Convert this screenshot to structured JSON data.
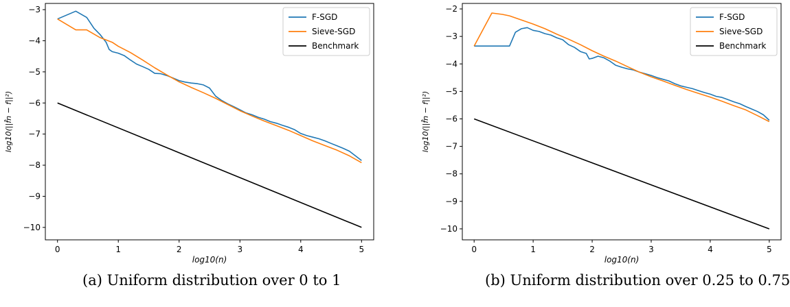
{
  "chart_data": [
    {
      "type": "line",
      "caption": "(a)  Uniform distribution over 0 to 1",
      "xlabel": "log10(n)",
      "ylabel": "log10(||f̂n − f||²)",
      "xlim": [
        -0.2,
        5.2
      ],
      "ylim": [
        -10.4,
        -2.8
      ],
      "xticks": [
        0,
        1,
        2,
        3,
        4,
        5
      ],
      "xtick_labels": [
        "0",
        "1",
        "2",
        "3",
        "4",
        "5"
      ],
      "yticks": [
        -3,
        -4,
        -5,
        -6,
        -7,
        -8,
        -9,
        -10
      ],
      "ytick_labels": [
        "−3",
        "−4",
        "−5",
        "−6",
        "−7",
        "−8",
        "−9",
        "−10"
      ],
      "legend_position": "top-right",
      "grid": false,
      "series": [
        {
          "name": "F-SGD",
          "color": "#1f77b4",
          "x": [
            0,
            0.3,
            0.48,
            0.6,
            0.7,
            0.8,
            0.85,
            0.9,
            1.0,
            1.1,
            1.2,
            1.3,
            1.4,
            1.5,
            1.6,
            1.7,
            1.8,
            1.9,
            2.0,
            2.1,
            2.2,
            2.3,
            2.4,
            2.5,
            2.6,
            2.7,
            2.8,
            2.9,
            3.0,
            3.1,
            3.2,
            3.3,
            3.4,
            3.5,
            3.6,
            3.7,
            3.8,
            3.9,
            4.0,
            4.1,
            4.2,
            4.3,
            4.4,
            4.5,
            4.6,
            4.7,
            4.8,
            4.9,
            5.0
          ],
          "y": [
            -3.3,
            -3.05,
            -3.25,
            -3.6,
            -3.8,
            -4.05,
            -4.28,
            -4.35,
            -4.4,
            -4.48,
            -4.62,
            -4.75,
            -4.83,
            -4.92,
            -5.05,
            -5.06,
            -5.12,
            -5.2,
            -5.28,
            -5.33,
            -5.36,
            -5.38,
            -5.42,
            -5.52,
            -5.78,
            -5.92,
            -6.03,
            -6.12,
            -6.22,
            -6.32,
            -6.38,
            -6.46,
            -6.52,
            -6.6,
            -6.65,
            -6.72,
            -6.78,
            -6.86,
            -6.98,
            -7.05,
            -7.1,
            -7.15,
            -7.22,
            -7.3,
            -7.38,
            -7.46,
            -7.55,
            -7.7,
            -7.85
          ]
        },
        {
          "name": "Sieve-SGD",
          "color": "#ff7f0e",
          "x": [
            0,
            0.3,
            0.48,
            0.7,
            0.9,
            1.0,
            1.2,
            1.4,
            1.6,
            1.8,
            2.0,
            2.2,
            2.4,
            2.6,
            2.8,
            3.0,
            3.2,
            3.4,
            3.6,
            3.8,
            4.0,
            4.2,
            4.4,
            4.6,
            4.8,
            5.0
          ],
          "y": [
            -3.3,
            -3.65,
            -3.65,
            -3.9,
            -4.05,
            -4.18,
            -4.38,
            -4.62,
            -4.87,
            -5.1,
            -5.32,
            -5.5,
            -5.67,
            -5.85,
            -6.05,
            -6.25,
            -6.42,
            -6.58,
            -6.73,
            -6.88,
            -7.05,
            -7.22,
            -7.37,
            -7.52,
            -7.7,
            -7.92
          ]
        },
        {
          "name": "Benchmark",
          "color": "#000000",
          "x": [
            0,
            5
          ],
          "y": [
            -6,
            -10
          ]
        }
      ]
    },
    {
      "type": "line",
      "caption": "(b)  Uniform distribution over 0.25 to 0.75",
      "xlabel": "log10(n)",
      "ylabel": "log10(||f̂n − f||²)",
      "xlim": [
        -0.2,
        5.2
      ],
      "ylim": [
        -10.4,
        -1.8
      ],
      "xticks": [
        0,
        1,
        2,
        3,
        4,
        5
      ],
      "xtick_labels": [
        "0",
        "1",
        "2",
        "3",
        "4",
        "5"
      ],
      "yticks": [
        -2,
        -3,
        -4,
        -5,
        -6,
        -7,
        -8,
        -9,
        -10
      ],
      "ytick_labels": [
        "−2",
        "−3",
        "−4",
        "−5",
        "−6",
        "−7",
        "−8",
        "−9",
        "−10"
      ],
      "legend_position": "top-right",
      "grid": false,
      "series": [
        {
          "name": "F-SGD",
          "color": "#1f77b4",
          "x": [
            0,
            0.6,
            0.7,
            0.8,
            0.9,
            1.0,
            1.1,
            1.2,
            1.3,
            1.4,
            1.5,
            1.6,
            1.7,
            1.8,
            1.9,
            1.95,
            2.0,
            2.1,
            2.2,
            2.3,
            2.4,
            2.5,
            2.6,
            2.7,
            2.8,
            2.9,
            3.0,
            3.1,
            3.2,
            3.3,
            3.4,
            3.5,
            3.6,
            3.7,
            3.8,
            3.9,
            4.0,
            4.1,
            4.2,
            4.3,
            4.4,
            4.5,
            4.6,
            4.7,
            4.8,
            4.9,
            5.0
          ],
          "y": [
            -3.35,
            -3.35,
            -2.85,
            -2.72,
            -2.68,
            -2.78,
            -2.82,
            -2.9,
            -2.95,
            -3.05,
            -3.12,
            -3.3,
            -3.4,
            -3.55,
            -3.62,
            -3.82,
            -3.8,
            -3.72,
            -3.78,
            -3.9,
            -4.05,
            -4.12,
            -4.18,
            -4.22,
            -4.3,
            -4.36,
            -4.42,
            -4.5,
            -4.56,
            -4.62,
            -4.72,
            -4.8,
            -4.85,
            -4.9,
            -4.97,
            -5.04,
            -5.1,
            -5.18,
            -5.22,
            -5.3,
            -5.38,
            -5.45,
            -5.55,
            -5.64,
            -5.73,
            -5.85,
            -6.05
          ]
        },
        {
          "name": "Sieve-SGD",
          "color": "#ff7f0e",
          "x": [
            0,
            0.3,
            0.48,
            0.6,
            0.8,
            1.0,
            1.2,
            1.4,
            1.6,
            1.8,
            2.0,
            2.2,
            2.4,
            2.6,
            2.8,
            3.0,
            3.2,
            3.4,
            3.6,
            3.8,
            4.0,
            4.2,
            4.4,
            4.6,
            4.8,
            5.0
          ],
          "y": [
            -3.35,
            -2.15,
            -2.2,
            -2.25,
            -2.4,
            -2.55,
            -2.72,
            -2.92,
            -3.1,
            -3.3,
            -3.52,
            -3.72,
            -3.9,
            -4.1,
            -4.3,
            -4.47,
            -4.62,
            -4.78,
            -4.93,
            -5.07,
            -5.21,
            -5.36,
            -5.52,
            -5.67,
            -5.88,
            -6.1
          ]
        },
        {
          "name": "Benchmark",
          "color": "#000000",
          "x": [
            0,
            5
          ],
          "y": [
            -6,
            -10
          ]
        }
      ]
    }
  ]
}
